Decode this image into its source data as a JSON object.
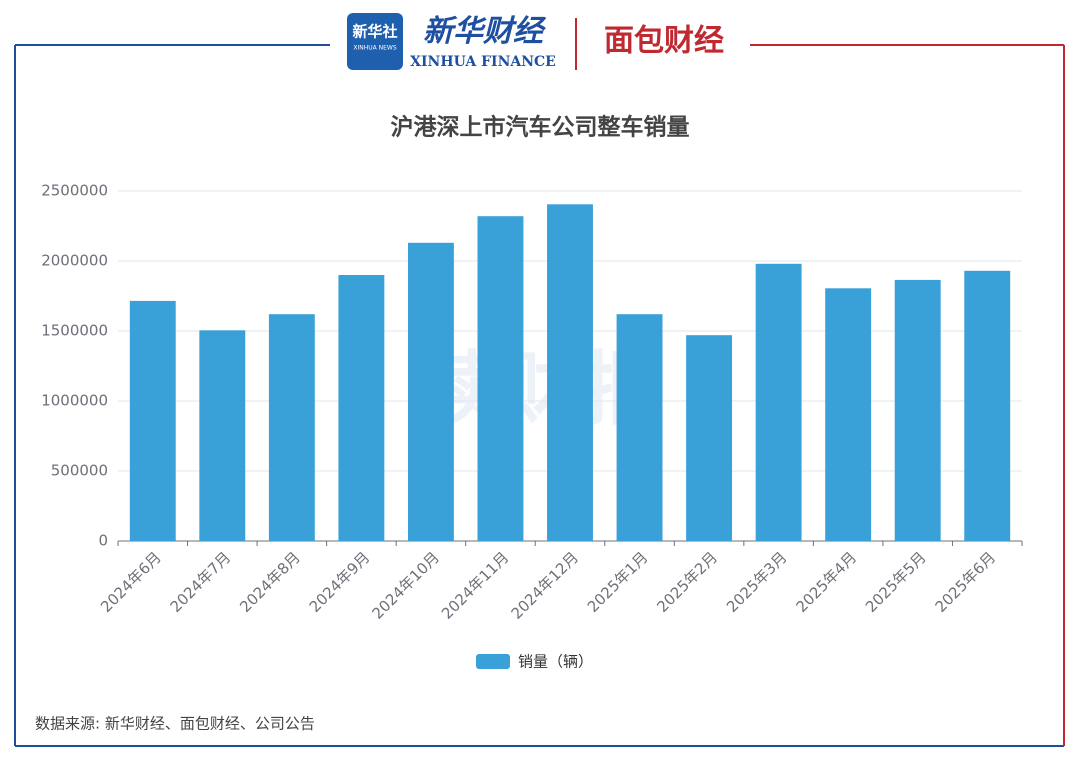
{
  "header": {
    "logo1_title": "新华社",
    "logo1_sub": "XINHUA NEWS",
    "logo2_title": "新华财经",
    "logo2_sub": "XINHUA FINANCE",
    "logo3_title": "面包财经"
  },
  "watermark": "读财报",
  "source": "数据来源: 新华财经、面包财经、公司公告",
  "chart_data": {
    "type": "bar",
    "title": "沪港深上市汽车公司整车销量",
    "categories": [
      "2024年6月",
      "2024年7月",
      "2024年8月",
      "2024年9月",
      "2024年10月",
      "2024年11月",
      "2024年12月",
      "2025年1月",
      "2025年2月",
      "2025年3月",
      "2025年4月",
      "2025年5月",
      "2025年6月"
    ],
    "series": [
      {
        "name": "销量（辆）",
        "color": "#3aa0d8",
        "values": [
          1715000,
          1505000,
          1620000,
          1900000,
          2130000,
          2320000,
          2405000,
          1620000,
          1470000,
          1980000,
          1805000,
          1865000,
          1930000
        ]
      }
    ],
    "ylim": [
      0,
      2500000
    ],
    "yticks": [
      0,
      500000,
      1000000,
      1500000,
      2000000,
      2500000
    ],
    "grid": true,
    "legend": "bottom"
  }
}
